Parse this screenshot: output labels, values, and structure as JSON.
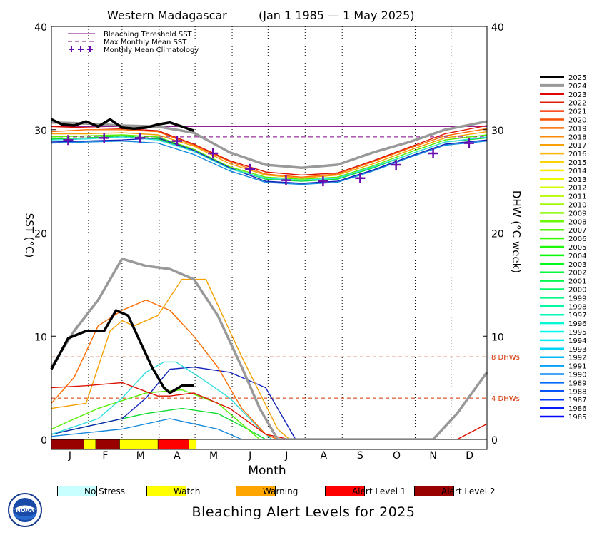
{
  "title": {
    "region": "Western Madagascar",
    "range": "(Jan 1 1985 — 1 May 2025)"
  },
  "legend_top": [
    {
      "label": "Bleaching Threshold SST",
      "style": "solid",
      "color": "#800080"
    },
    {
      "label": "Max Monthly Mean SST",
      "style": "dashed",
      "color": "#800080"
    },
    {
      "label": "Monthly Mean Climatology",
      "style": "plus",
      "color": "#6a0dad"
    }
  ],
  "axes": {
    "y_left_label": "SST (°C)",
    "y_right_label": "DHW (°C week)",
    "x_label": "Month",
    "y_ticks": [
      "0",
      "10",
      "20",
      "30",
      "40"
    ],
    "months": [
      "J",
      "F",
      "M",
      "A",
      "M",
      "J",
      "J",
      "A",
      "S",
      "O",
      "N",
      "D"
    ],
    "dhw_lines": [
      "8 DHWs",
      "4 DHWs"
    ]
  },
  "year_legend": [
    "2025",
    "2024",
    "2023",
    "2022",
    "2021",
    "2020",
    "2019",
    "2018",
    "2017",
    "2016",
    "2015",
    "2014",
    "2013",
    "2012",
    "2011",
    "2010",
    "2009",
    "2008",
    "2007",
    "2006",
    "2005",
    "2004",
    "2003",
    "2002",
    "2001",
    "2000",
    "1999",
    "1998",
    "1997",
    "1996",
    "1995",
    "1994",
    "1993",
    "1992",
    "1991",
    "1990",
    "1989",
    "1988",
    "1987",
    "1986",
    "1985"
  ],
  "alert_legend": [
    {
      "label": "No Stress",
      "color": "#c8ffff"
    },
    {
      "label": "Watch",
      "color": "#ffff00"
    },
    {
      "label": "Warning",
      "color": "#ffa500"
    },
    {
      "label": "Alert Level 1",
      "color": "#ff0000"
    },
    {
      "label": "Alert Level 2",
      "color": "#990000"
    }
  ],
  "footer_title": "Bleaching Alert Levels for 2025",
  "chart_data": {
    "type": "line",
    "x_unit": "day of year",
    "xlim": [
      1,
      365
    ],
    "ylim": [
      0,
      40
    ],
    "grid": "dotted vertical month lines",
    "bleaching_threshold_sst": 30.3,
    "max_monthly_mean_sst": 29.3,
    "dhw_reference_lines": [
      8,
      4
    ],
    "climatology_monthly_mean": {
      "x": [
        15,
        45,
        75,
        106,
        136,
        167,
        197,
        228,
        259,
        289,
        320,
        350
      ],
      "y": [
        29.0,
        29.2,
        29.2,
        28.9,
        27.7,
        26.2,
        25.1,
        25.0,
        25.3,
        26.6,
        27.7,
        28.7
      ]
    },
    "series": [
      {
        "name": "2025",
        "color": "#000000",
        "sst": {
          "x": [
            1,
            10,
            20,
            30,
            40,
            50,
            60,
            70,
            80,
            90,
            100,
            110,
            120
          ],
          "y": [
            31.0,
            30.5,
            30.4,
            30.8,
            30.3,
            31.0,
            30.2,
            30.1,
            30.2,
            30.5,
            30.7,
            30.3,
            29.9
          ]
        },
        "dhw": {
          "x": [
            1,
            15,
            30,
            45,
            55,
            65,
            75,
            85,
            95,
            100,
            110,
            120
          ],
          "y": [
            6.8,
            9.8,
            10.5,
            10.5,
            12.5,
            12.0,
            9.5,
            7.0,
            5.0,
            4.5,
            5.2,
            5.2
          ]
        }
      },
      {
        "name": "2024",
        "color": "#999999",
        "sst": {
          "x": [
            1,
            30,
            60,
            90,
            120,
            150,
            180,
            210,
            240,
            270,
            300,
            330,
            365
          ],
          "y": [
            30.7,
            30.6,
            30.4,
            30.3,
            29.7,
            27.8,
            26.6,
            26.3,
            26.6,
            27.8,
            28.8,
            30.0,
            30.8
          ]
        },
        "dhw": {
          "x": [
            1,
            20,
            40,
            60,
            80,
            100,
            120,
            140,
            160,
            175,
            190,
            200,
            240,
            290,
            320,
            340,
            365
          ],
          "y": [
            7.0,
            10.5,
            13.5,
            17.5,
            16.8,
            16.5,
            15.5,
            12.0,
            7.0,
            3.0,
            0.0,
            0.0,
            0.0,
            0.0,
            0.0,
            2.5,
            6.5
          ]
        }
      },
      {
        "name": "2023",
        "color": "#dd1100",
        "sst": {
          "x": [
            1,
            30,
            60,
            90,
            120,
            150,
            180,
            210,
            240,
            270,
            300,
            330,
            365
          ],
          "y": [
            30.3,
            30.2,
            30.1,
            29.9,
            28.6,
            27.0,
            25.9,
            25.6,
            25.8,
            27.0,
            28.3,
            29.6,
            30.4
          ]
        },
        "dhw": {
          "x": [
            1,
            30,
            60,
            90,
            100,
            120,
            150,
            180,
            200,
            320,
            340,
            365
          ],
          "y": [
            5.0,
            5.2,
            5.5,
            4.2,
            4.2,
            4.5,
            3.0,
            0.5,
            0.0,
            0.0,
            0.0,
            1.5
          ]
        }
      },
      {
        "name": "2017",
        "color": "#f5a000",
        "sst": {
          "x": [
            1,
            30,
            60,
            90,
            120,
            150,
            180,
            210,
            240,
            270,
            300,
            330,
            365
          ],
          "y": [
            29.6,
            29.6,
            29.7,
            29.5,
            28.4,
            26.7,
            25.6,
            25.3,
            25.6,
            26.7,
            28.0,
            29.2,
            29.8
          ]
        },
        "dhw": {
          "x": [
            1,
            30,
            50,
            60,
            70,
            90,
            110,
            130,
            160,
            190,
            200
          ],
          "y": [
            3.0,
            3.5,
            10.5,
            11.5,
            11.0,
            12.0,
            15.5,
            15.5,
            8.0,
            1.0,
            0.0
          ]
        }
      },
      {
        "name": "2019",
        "color": "#ff6a00",
        "sst": {
          "x": [
            1,
            30,
            60,
            90,
            120,
            150,
            180,
            210,
            240,
            270,
            300,
            330,
            365
          ],
          "y": [
            29.8,
            30.0,
            30.0,
            29.8,
            28.5,
            26.9,
            25.7,
            25.4,
            25.7,
            26.9,
            28.2,
            29.4,
            30.1
          ]
        },
        "dhw": {
          "x": [
            1,
            20,
            40,
            60,
            80,
            100,
            120,
            140,
            160,
            180,
            190
          ],
          "y": [
            3.5,
            6.0,
            11.0,
            12.5,
            13.5,
            12.5,
            10.0,
            7.0,
            3.0,
            0.5,
            0.0
          ]
        }
      },
      {
        "name": "1998",
        "color": "#33dddd",
        "sst": {
          "x": [
            1,
            30,
            60,
            90,
            120,
            150,
            180,
            210,
            240,
            270,
            300,
            330,
            365
          ],
          "y": [
            29.0,
            29.1,
            29.3,
            29.0,
            27.9,
            26.2,
            25.3,
            25.1,
            25.3,
            26.4,
            27.6,
            28.8,
            29.3
          ]
        },
        "dhw": {
          "x": [
            1,
            40,
            60,
            80,
            95,
            105,
            125,
            150,
            175,
            185
          ],
          "y": [
            0.5,
            2.0,
            4.0,
            6.5,
            7.5,
            7.5,
            6.0,
            4.0,
            1.0,
            0.0
          ]
        }
      },
      {
        "name": "1988",
        "color": "#1122bb",
        "sst": {
          "x": [
            1,
            30,
            60,
            90,
            120,
            150,
            180,
            210,
            240,
            270,
            300,
            330,
            365
          ],
          "y": [
            28.8,
            28.9,
            29.0,
            29.2,
            28.0,
            26.3,
            25.0,
            24.8,
            25.0,
            26.1,
            27.4,
            28.6,
            29.0
          ]
        },
        "dhw": {
          "x": [
            1,
            60,
            80,
            100,
            120,
            150,
            180,
            195,
            205
          ],
          "y": [
            0.5,
            2.0,
            4.0,
            6.8,
            7.0,
            6.5,
            5.0,
            2.0,
            0.0
          ]
        }
      },
      {
        "name": "2010",
        "color": "#55ee00",
        "sst": {
          "x": [
            1,
            30,
            60,
            90,
            120,
            150,
            180,
            210,
            240,
            270,
            300,
            330,
            365
          ],
          "y": [
            29.3,
            29.4,
            29.5,
            29.3,
            28.1,
            26.4,
            25.4,
            25.2,
            25.4,
            26.5,
            27.8,
            29.0,
            29.5
          ]
        },
        "dhw": {
          "x": [
            1,
            40,
            80,
            110,
            140,
            160,
            175
          ],
          "y": [
            1.0,
            3.0,
            4.5,
            4.8,
            3.5,
            1.5,
            0.0
          ]
        }
      },
      {
        "name": "2005",
        "color": "#11dd33",
        "sst": {
          "x": [
            1,
            30,
            60,
            90,
            120,
            150,
            180,
            210,
            240,
            270,
            300,
            330,
            365
          ],
          "y": [
            29.1,
            29.2,
            29.4,
            29.1,
            27.9,
            26.3,
            25.2,
            25.0,
            25.2,
            26.3,
            27.6,
            28.8,
            29.2
          ]
        },
        "dhw": {
          "x": [
            1,
            40,
            80,
            110,
            140,
            165,
            180
          ],
          "y": [
            0.5,
            1.5,
            2.5,
            3.0,
            2.5,
            1.0,
            0.0
          ]
        }
      },
      {
        "name": "1993",
        "color": "#1188dd",
        "sst": {
          "x": [
            1,
            30,
            60,
            90,
            120,
            150,
            180,
            210,
            240,
            270,
            300,
            330,
            365
          ],
          "y": [
            28.7,
            28.8,
            28.9,
            28.7,
            27.6,
            26.0,
            24.9,
            24.7,
            24.9,
            26.0,
            27.3,
            28.5,
            28.9
          ]
        },
        "dhw": {
          "x": [
            1,
            60,
            100,
            140,
            160
          ],
          "y": [
            0.3,
            1.0,
            2.0,
            1.0,
            0.0
          ]
        }
      }
    ],
    "alert_bar_2025": [
      {
        "from": 1,
        "to": 28,
        "level": "Alert Level 2"
      },
      {
        "from": 28,
        "to": 38,
        "level": "Watch"
      },
      {
        "from": 38,
        "to": 58,
        "level": "Alert Level 2"
      },
      {
        "from": 58,
        "to": 90,
        "level": "Watch"
      },
      {
        "from": 90,
        "to": 116,
        "level": "Alert Level 1"
      },
      {
        "from": 116,
        "to": 122,
        "level": "Watch"
      }
    ]
  }
}
